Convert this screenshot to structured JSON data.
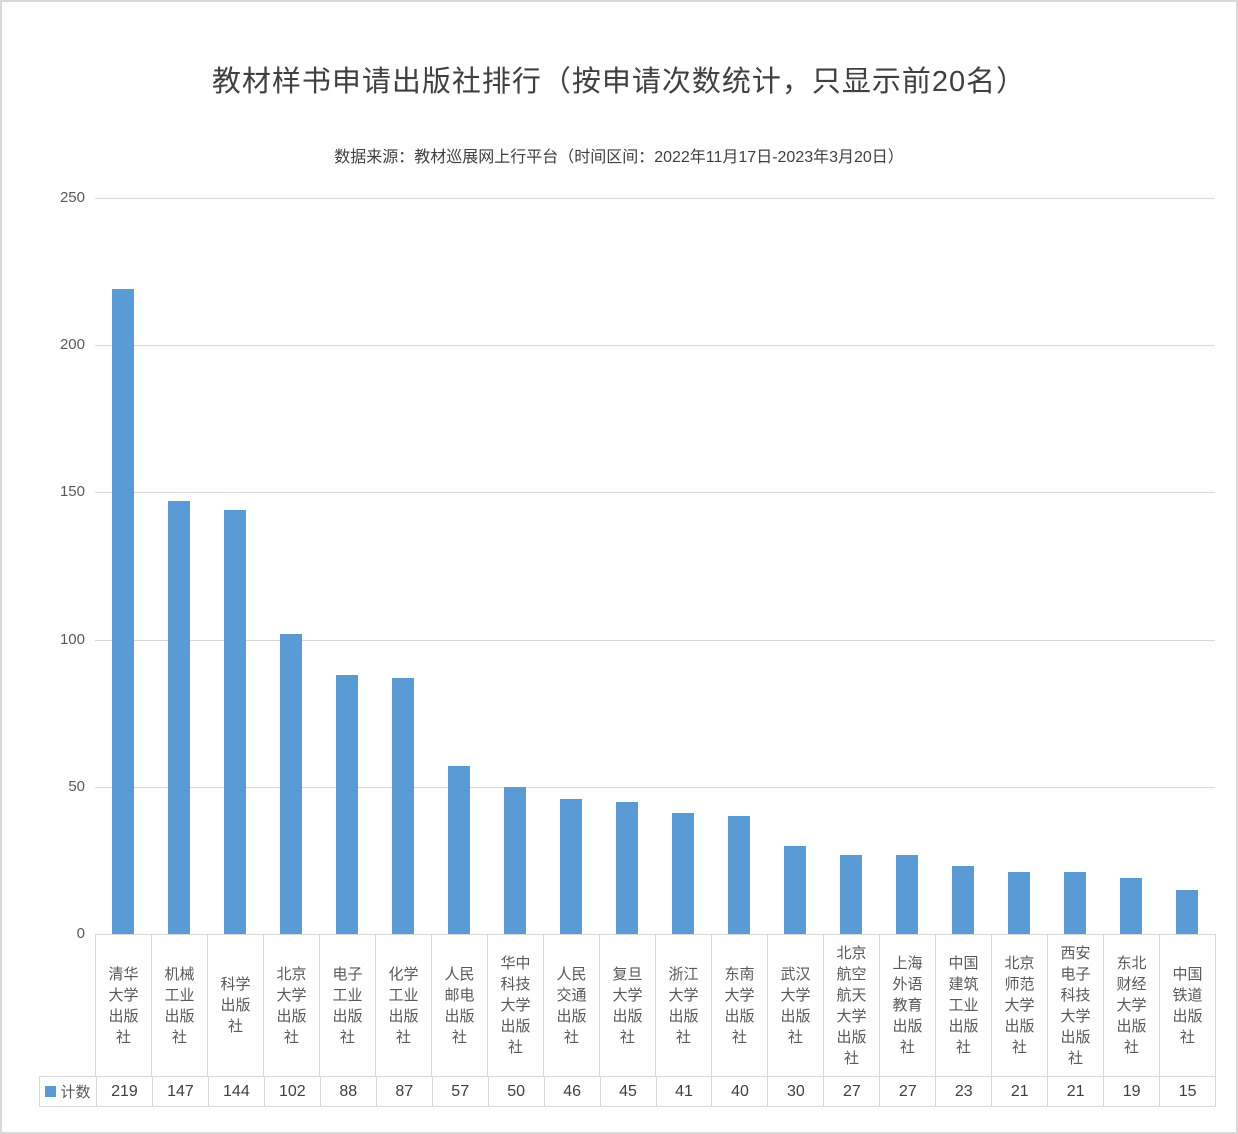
{
  "chart_data": {
    "type": "bar",
    "title": "教材样书申请出版社排行（按申请次数统计，只显示前20名）",
    "subtitle": "数据来源：教材巡展网上行平台（时间区间：2022年11月17日-2023年3月20日）",
    "categories": [
      "清华大学出版社",
      "机械工业出版社",
      "科学出版社",
      "北京大学出版社",
      "电子工业出版社",
      "化学工业出版社",
      "人民邮电出版社",
      "华中科技大学出版社",
      "人民交通出版社",
      "复旦大学出版社",
      "浙江大学出版社",
      "东南大学出版社",
      "武汉大学出版社",
      "北京航空航天大学出版社",
      "上海外语教育出版社",
      "中国建筑工业出版社",
      "北京师范大学出版社",
      "西安电子科技大学出版社",
      "东北财经大学出版社",
      "中国铁道出版社"
    ],
    "series": [
      {
        "name": "计数",
        "values": [
          219,
          147,
          144,
          102,
          88,
          87,
          57,
          50,
          46,
          45,
          41,
          40,
          30,
          27,
          27,
          23,
          21,
          21,
          19,
          15
        ]
      }
    ],
    "ylim": [
      0,
      250
    ],
    "yticks": [
      0,
      50,
      100,
      150,
      200,
      250
    ],
    "grid": true,
    "legend_position": "data-table-left",
    "data_table_shown": true,
    "colors": {
      "bar": "#5b9bd5",
      "legend_swatch": "#5b9bd5",
      "gridline": "#d9d9d9",
      "axis_text": "#595959",
      "title_text": "#404040"
    }
  }
}
